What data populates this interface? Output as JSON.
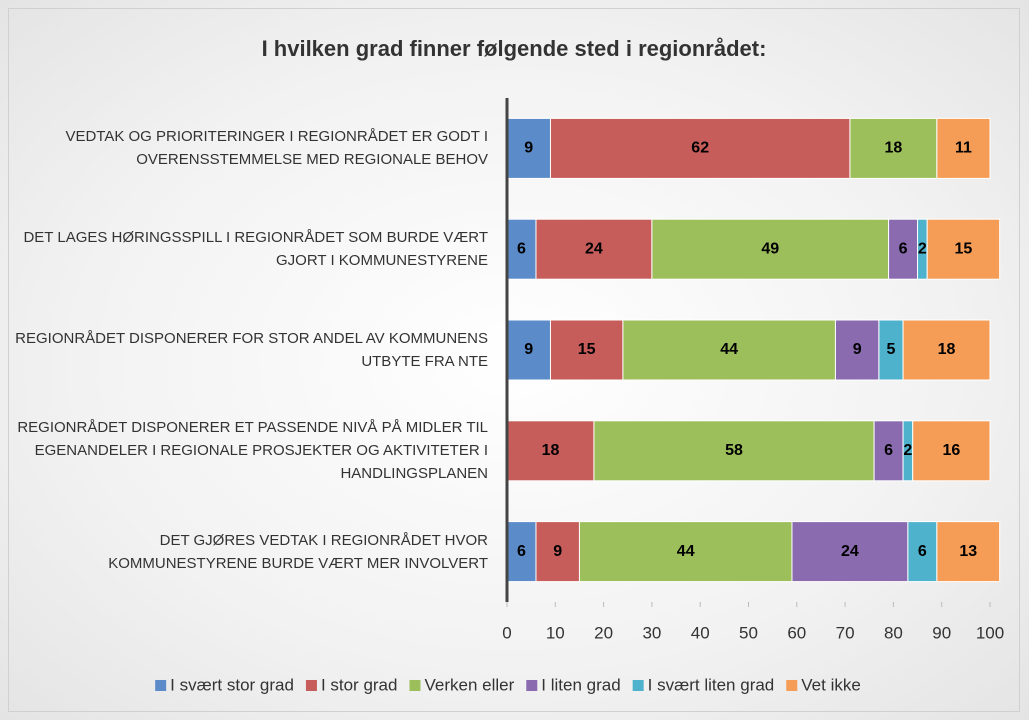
{
  "chart_data": {
    "type": "stacked-bar-horizontal",
    "title": "I hvilken grad finner følgende sted i regionrådet:",
    "categories": [
      "VEDTAK OG PRIORITERINGER I REGIONRÅDET ER GODT I OVERENSSTEMMELSE MED REGIONALE BEHOV",
      "DET LAGES HØRINGSSPILL I REGIONRÅDET SOM BURDE VÆRT GJORT I KOMMUNESTYRENE",
      "REGIONRÅDET DISPONERER FOR STOR ANDEL AV KOMMUNENS UTBYTE FRA NTE",
      "REGIONRÅDET DISPONERER ET PASSENDE NIVÅ PÅ MIDLER TIL EGENANDELER I REGIONALE PROSJEKTER OG AKTIVITETER I HANDLINGSPLANEN",
      "DET GJØRES VEDTAK I REGIONRÅDET HVOR KOMMUNESTYRENE BURDE VÆRT MER INVOLVERT"
    ],
    "series": [
      {
        "name": "I svært stor grad",
        "color": "#5b8bc9",
        "values": [
          9,
          6,
          9,
          null,
          6
        ]
      },
      {
        "name": "I stor grad",
        "color": "#c65d5a",
        "values": [
          62,
          24,
          15,
          18,
          9
        ]
      },
      {
        "name": "Verken eller",
        "color": "#9cbf5c",
        "values": [
          18,
          49,
          44,
          58,
          44
        ]
      },
      {
        "name": "I liten grad",
        "color": "#8a6bb0",
        "values": [
          null,
          6,
          9,
          6,
          24
        ]
      },
      {
        "name": "I svært liten grad",
        "color": "#4fb2cc",
        "values": [
          null,
          2,
          5,
          2,
          6
        ]
      },
      {
        "name": "Vet ikke",
        "color": "#f59d56",
        "values": [
          11,
          15,
          18,
          16,
          13
        ]
      }
    ],
    "xlim": [
      0,
      100
    ],
    "xticks": [
      0,
      10,
      20,
      30,
      40,
      50,
      60,
      70,
      80,
      90,
      100
    ],
    "grid": false,
    "legend": "bottom"
  }
}
